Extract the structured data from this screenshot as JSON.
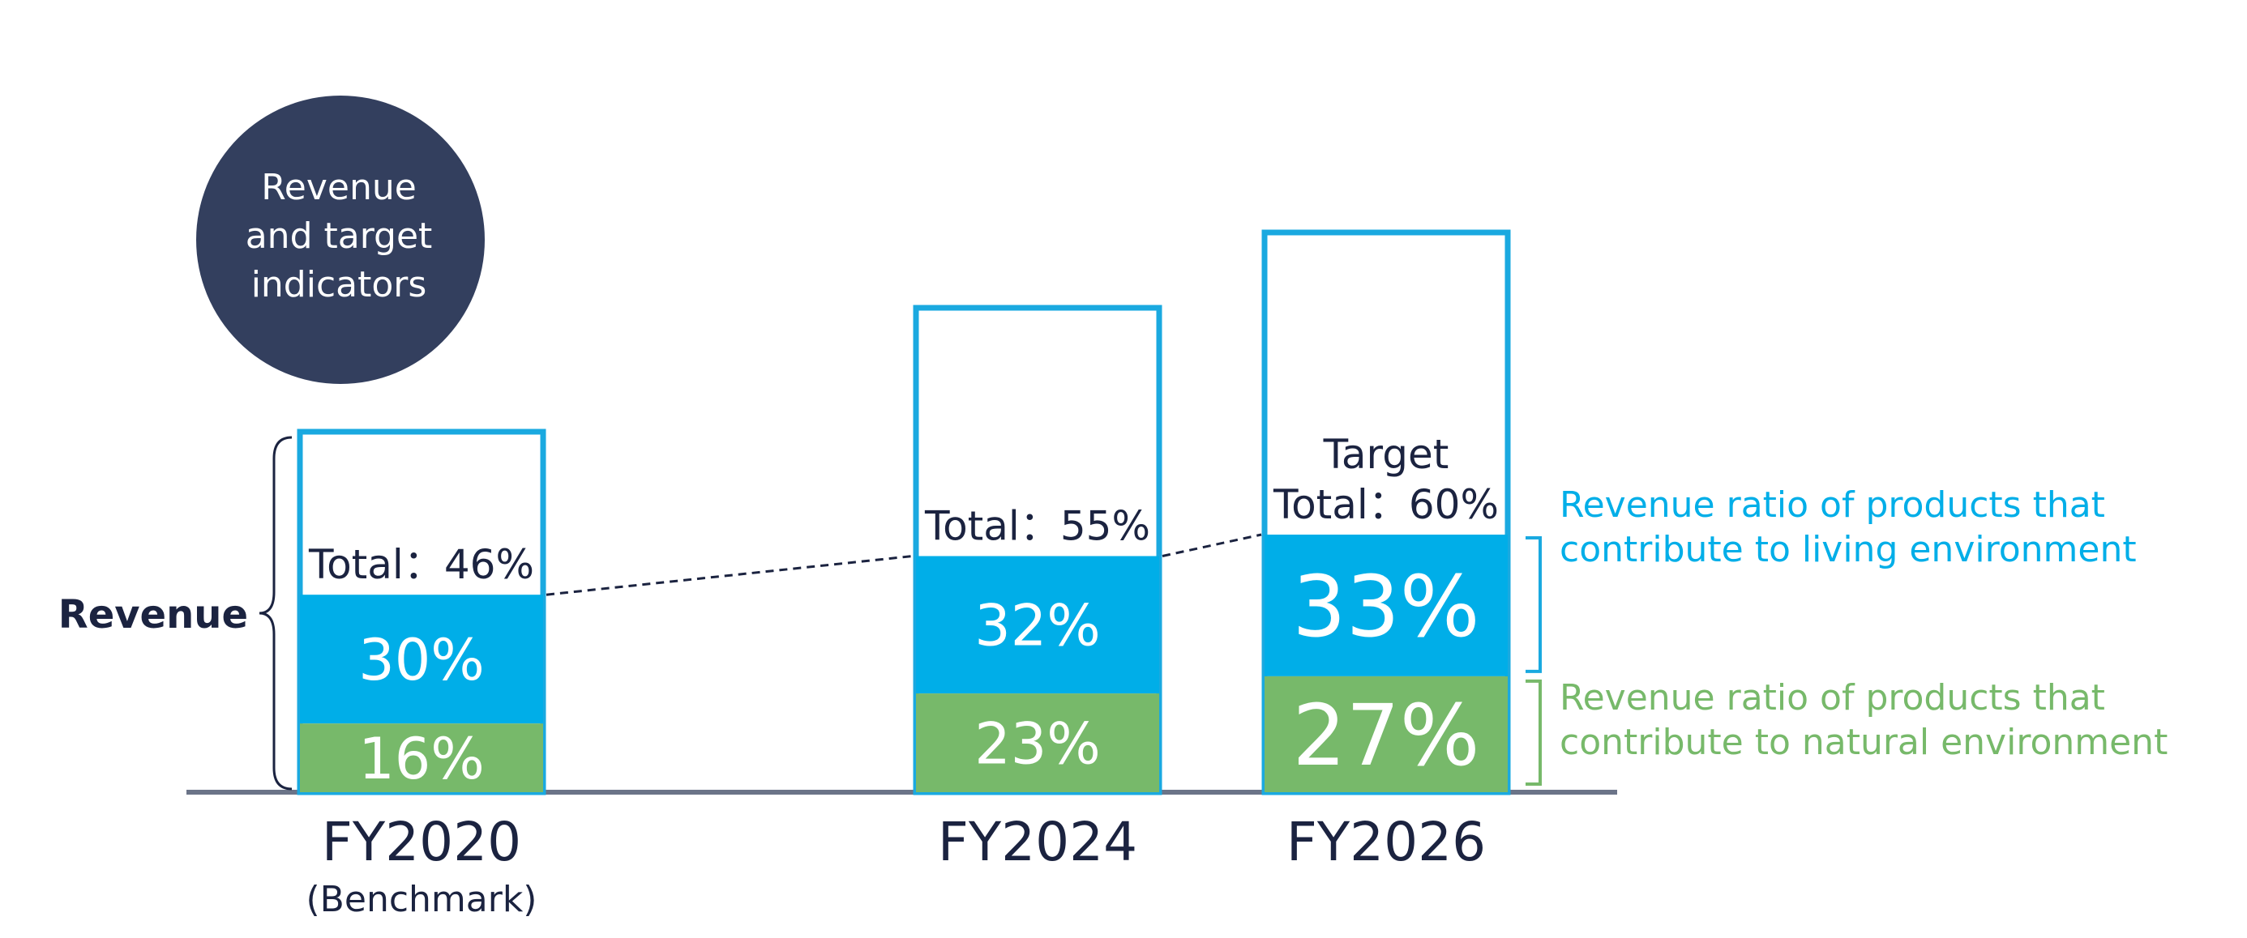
{
  "badge": {
    "lines": [
      "Revenue",
      "and target",
      "indicators"
    ]
  },
  "axis_label": "Revenue",
  "colors": {
    "living": "#00aee8",
    "natural": "#77b96a",
    "outline": "#1aa9e0",
    "navy": "#333f5e",
    "text_dark": "#1b2340",
    "baseline": "#6b7488",
    "bracket_living": "#1aa9e0",
    "bracket_natural": "#77b96a"
  },
  "legend": {
    "living": [
      "Revenue ratio of products that",
      "contribute to living environment"
    ],
    "natural": [
      "Revenue ratio of products that",
      "contribute to natural environment"
    ]
  },
  "chart_data": {
    "type": "bar",
    "stacked": true,
    "categories": [
      "FY2020",
      "FY2024",
      "FY2026"
    ],
    "category_sublabels": [
      "(Benchmark)",
      "",
      ""
    ],
    "series": [
      {
        "name": "Revenue ratio of products that contribute to natural environment",
        "values": [
          16,
          23,
          27
        ],
        "labels": [
          "16%",
          "23%",
          "27%"
        ]
      },
      {
        "name": "Revenue ratio of products that contribute to living environment",
        "values": [
          30,
          32,
          33
        ],
        "labels": [
          "30%",
          "32%",
          "33%"
        ]
      }
    ],
    "totals": [
      46,
      55,
      60
    ],
    "total_labels": [
      [
        "Total：46%"
      ],
      [
        "Total：55%"
      ],
      [
        "Target",
        "Total：60%"
      ]
    ],
    "title": "",
    "xlabel": "",
    "ylabel": "Revenue",
    "ylim": [
      0,
      70
    ],
    "grid": false
  }
}
